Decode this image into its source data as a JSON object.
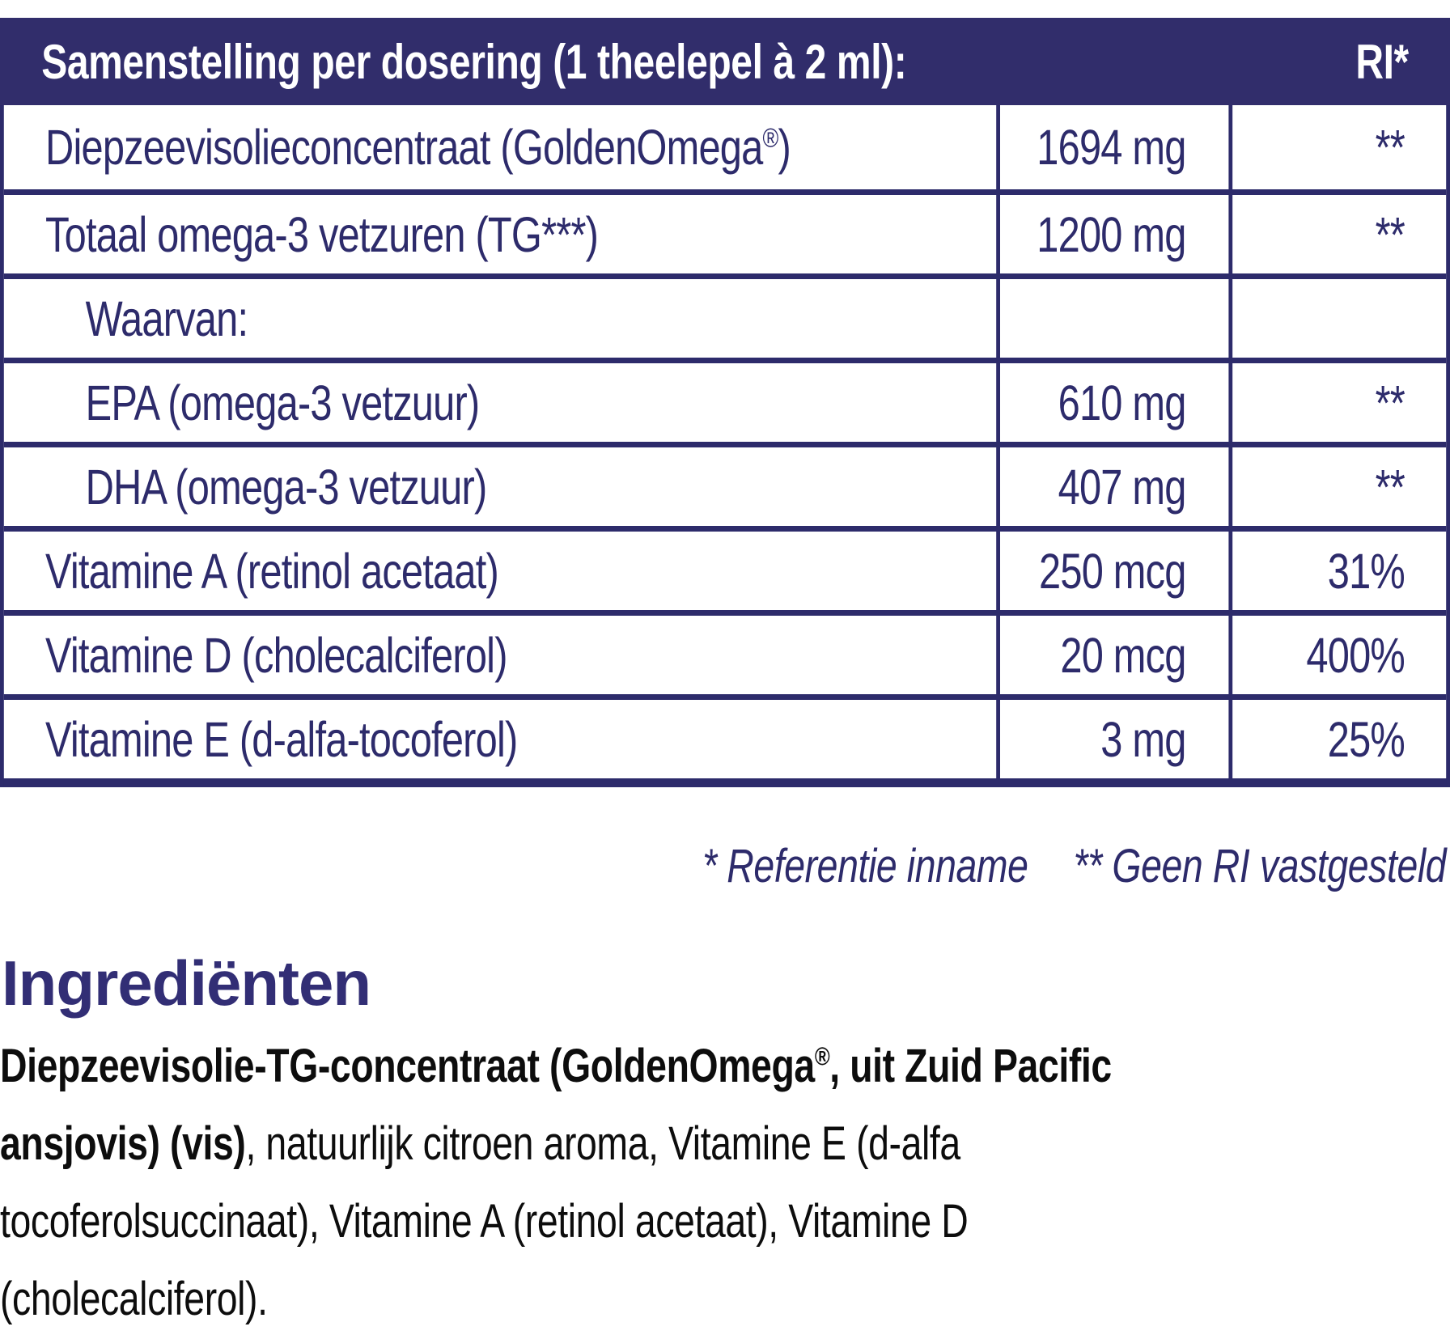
{
  "colors": {
    "navy_text_border": "#2d2b6b",
    "header_bar_bg": "#312d6b",
    "header_text": "#ffffff",
    "heading_purple": "#322e75",
    "body_text": "#0d0d0d"
  },
  "table": {
    "header": {
      "title": "Samenstelling per dosering (1 theelepel à 2 ml):",
      "ri": "RI*"
    },
    "rows": [
      {
        "label_pre": "Diepzeevisolieconcentraat (GoldenOmega",
        "label_sup": "®",
        "label_post": ")",
        "amount": "1694 mg",
        "ri": "**"
      },
      {
        "label_pre": "Totaal omega-3 vetzuren (TG***)",
        "label_sup": "",
        "label_post": "",
        "amount": "1200 mg",
        "ri": "**"
      },
      {
        "label_pre": "Waarvan:",
        "label_sup": "",
        "label_post": "",
        "amount": "",
        "ri": ""
      },
      {
        "label_pre": "EPA (omega-3 vetzuur)",
        "label_sup": "",
        "label_post": "",
        "amount": "610 mg",
        "ri": "**"
      },
      {
        "label_pre": "DHA (omega-3 vetzuur)",
        "label_sup": "",
        "label_post": "",
        "amount": "407 mg",
        "ri": "**"
      },
      {
        "label_pre": "Vitamine A (retinol acetaat)",
        "label_sup": "",
        "label_post": "",
        "amount": "250 mcg",
        "ri": "31%"
      },
      {
        "label_pre": "Vitamine D (cholecalciferol)",
        "label_sup": "",
        "label_post": "",
        "amount": "20 mcg",
        "ri": "400%"
      },
      {
        "label_pre": "Vitamine E (d-alfa-tocoferol)",
        "label_sup": "",
        "label_post": "",
        "amount": "3 mg",
        "ri": "25%"
      }
    ]
  },
  "footnote": {
    "reference": "* Referentie inname",
    "no_ri": "** Geen RI vastgesteld"
  },
  "ingredients": {
    "heading": "Ingrediënten",
    "lines": [
      {
        "b_pre": "Diepzeevisolie-TG-concentraat (GoldenOmega",
        "b_sup": "®",
        "b_post": ", uit Zuid Pacific",
        "reg": ""
      },
      {
        "b_pre": "ansjovis) (vis)",
        "b_sup": "",
        "b_post": "",
        "reg": ", natuurlijk citroen aroma, Vitamine E (d-alfa"
      },
      {
        "b_pre": "",
        "b_sup": "",
        "b_post": "",
        "reg": "tocoferolsuccinaat), Vitamine A (retinol acetaat), Vitamine D"
      },
      {
        "b_pre": "",
        "b_sup": "",
        "b_post": "",
        "reg": "(cholecalciferol)."
      }
    ]
  }
}
